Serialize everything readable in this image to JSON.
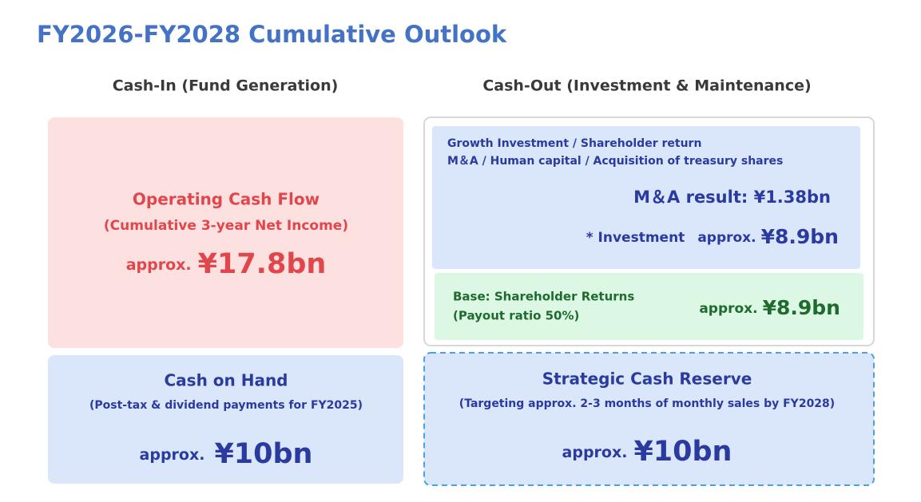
{
  "title": "FY2026-FY2028 Cumulative Outlook",
  "cash_in": {
    "heading": "Cash-In (Fund Generation)",
    "operating_cash_flow": {
      "title": "Operating Cash Flow",
      "note": "(Cumulative 3-year Net Income)",
      "prefix": "approx.",
      "amount": "¥17.8bn"
    },
    "cash_on_hand": {
      "title": "Cash on Hand",
      "note": "(Post-tax & dividend payments for FY2025)",
      "prefix": "approx.",
      "amount": "¥10bn"
    }
  },
  "cash_out": {
    "heading": "Cash-Out (Investment & Maintenance)",
    "growth_investment": {
      "line1": "Growth Investment / Shareholder return",
      "line2": "M＆A / Human capital / Acquisition of treasury shares",
      "ma_result": "M＆A result: ¥1.38bn",
      "label": "* Investment",
      "prefix": "approx.",
      "amount": "¥8.9bn"
    },
    "shareholder_returns": {
      "title": "Base: Shareholder Returns",
      "note": "(Payout ratio 50%)",
      "prefix": "approx.",
      "amount": "¥8.9bn"
    },
    "strategic_reserve": {
      "title": "Strategic Cash Reserve",
      "note": "(Targeting approx. 2-3 months of monthly sales by FY2028)",
      "prefix": "approx.",
      "amount": "¥10bn"
    }
  }
}
